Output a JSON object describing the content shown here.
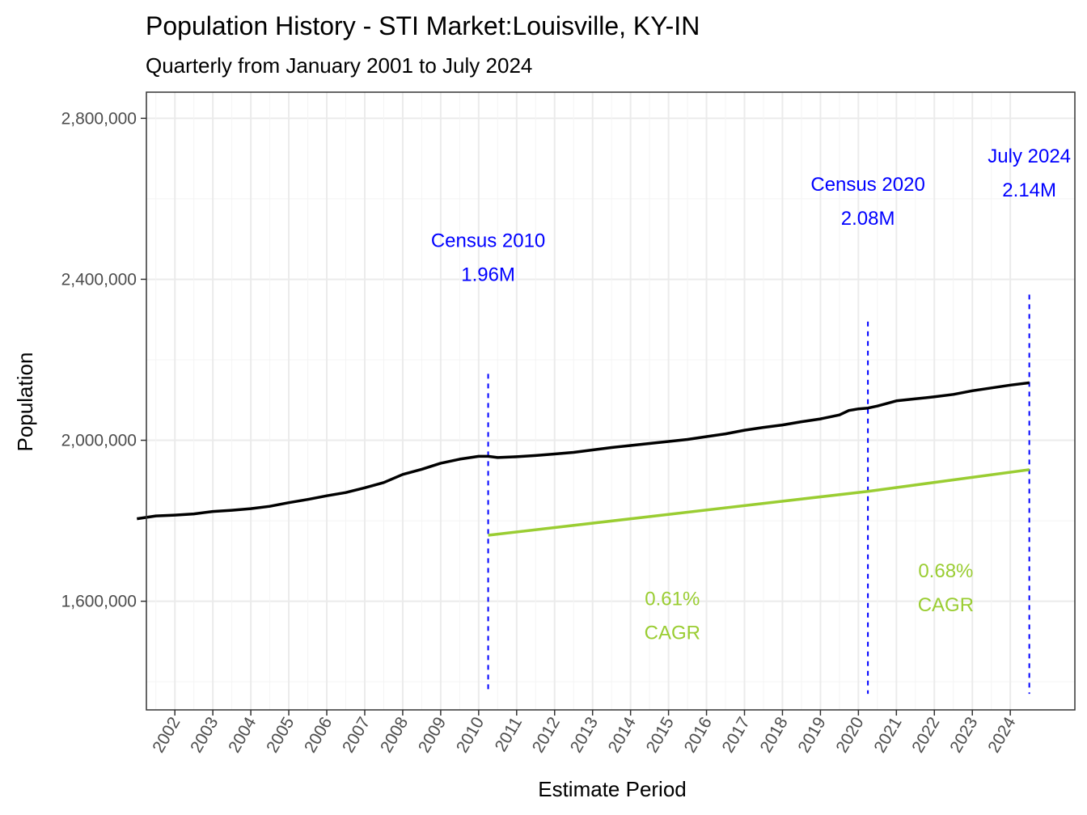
{
  "chart_data": {
    "type": "line",
    "title": "Population History - STI Market:Louisville, KY-IN",
    "subtitle": "Quarterly from January 2001 to July 2024",
    "xlabel": "Estimate Period",
    "ylabel": "Population",
    "ylim": [
      1330000,
      2865000
    ],
    "xlim": [
      2001.25,
      2025.7
    ],
    "grid": true,
    "y_ticks": [
      {
        "value": 1600000,
        "label": "1,600,000"
      },
      {
        "value": 2000000,
        "label": "2,000,000"
      },
      {
        "value": 2400000,
        "label": "2,400,000"
      },
      {
        "value": 2800000,
        "label": "2,800,000"
      }
    ],
    "x_ticks": [
      "2002",
      "2003",
      "2004",
      "2005",
      "2006",
      "2007",
      "2008",
      "2009",
      "2010",
      "2011",
      "2012",
      "2013",
      "2014",
      "2015",
      "2016",
      "2017",
      "2018",
      "2019",
      "2020",
      "2021",
      "2022",
      "2023",
      "2024"
    ],
    "series": [
      {
        "color": "#000000",
        "points": [
          [
            2001.0,
            1805000
          ],
          [
            2001.5,
            1812000
          ],
          [
            2002.0,
            1814000
          ],
          [
            2002.5,
            1817000
          ],
          [
            2003.0,
            1823000
          ],
          [
            2003.5,
            1826000
          ],
          [
            2004.0,
            1830000
          ],
          [
            2004.5,
            1836000
          ],
          [
            2005.0,
            1845000
          ],
          [
            2005.5,
            1853000
          ],
          [
            2006.0,
            1862000
          ],
          [
            2006.5,
            1870000
          ],
          [
            2007.0,
            1882000
          ],
          [
            2007.5,
            1895000
          ],
          [
            2008.0,
            1915000
          ],
          [
            2008.5,
            1928000
          ],
          [
            2009.0,
            1943000
          ],
          [
            2009.5,
            1953000
          ],
          [
            2010.0,
            1960000
          ],
          [
            2010.25,
            1960000
          ],
          [
            2010.5,
            1957000
          ],
          [
            2011.0,
            1959000
          ],
          [
            2011.5,
            1962000
          ],
          [
            2012.0,
            1966000
          ],
          [
            2012.5,
            1970000
          ],
          [
            2013.0,
            1976000
          ],
          [
            2013.5,
            1982000
          ],
          [
            2014.0,
            1987000
          ],
          [
            2014.5,
            1992000
          ],
          [
            2015.0,
            1997000
          ],
          [
            2015.5,
            2002000
          ],
          [
            2016.0,
            2009000
          ],
          [
            2016.5,
            2016000
          ],
          [
            2017.0,
            2025000
          ],
          [
            2017.5,
            2032000
          ],
          [
            2018.0,
            2038000
          ],
          [
            2018.5,
            2046000
          ],
          [
            2019.0,
            2053000
          ],
          [
            2019.5,
            2063000
          ],
          [
            2019.75,
            2074000
          ],
          [
            2020.0,
            2078000
          ],
          [
            2020.25,
            2080000
          ],
          [
            2020.5,
            2085000
          ],
          [
            2021.0,
            2098000
          ],
          [
            2021.5,
            2103000
          ],
          [
            2022.0,
            2108000
          ],
          [
            2022.5,
            2114000
          ],
          [
            2023.0,
            2123000
          ],
          [
            2023.5,
            2130000
          ],
          [
            2024.0,
            2137000
          ],
          [
            2024.5,
            2143000
          ]
        ]
      },
      {
        "color": "#9acd32",
        "points": [
          [
            2010.25,
            1764000
          ],
          [
            2020.25,
            1873000
          ],
          [
            2024.5,
            1927000
          ]
        ]
      }
    ],
    "vlines": [
      {
        "x": 2010.25,
        "y_top": 2165000,
        "y_bottom": 1370000,
        "color": "#0000ff"
      },
      {
        "x": 2020.25,
        "y_top": 2295000,
        "y_bottom": 1370000,
        "color": "#0000ff"
      },
      {
        "x": 2024.5,
        "y_top": 2362000,
        "y_bottom": 1370000,
        "color": "#0000ff"
      }
    ],
    "annotations": [
      {
        "lines": [
          "Census 2010",
          "1.96M"
        ],
        "x": 2010.25,
        "y": 2480000,
        "color": "blue"
      },
      {
        "lines": [
          "Census 2020",
          "2.08M"
        ],
        "x": 2020.25,
        "y": 2620000,
        "color": "blue"
      },
      {
        "lines": [
          "July 2024",
          "2.14M"
        ],
        "x": 2024.5,
        "y": 2690000,
        "color": "blue"
      },
      {
        "lines": [
          "0.61%",
          "CAGR"
        ],
        "x": 2015.1,
        "y": 1590000,
        "color": "green"
      },
      {
        "lines": [
          "0.68%",
          "CAGR"
        ],
        "x": 2022.3,
        "y": 1660000,
        "color": "green"
      }
    ]
  }
}
